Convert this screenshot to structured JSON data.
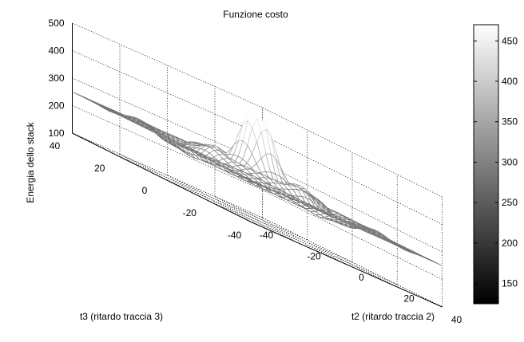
{
  "chart_data": {
    "type": "surface",
    "title": "Funzione costo",
    "xlabel": "t2 (ritardo traccia 2)",
    "ylabel": "t3 (ritardo traccia 3)",
    "zlabel": "Energia dello stack",
    "xlim": [
      -40,
      40
    ],
    "ylim": [
      -40,
      40
    ],
    "zlim": [
      100,
      500
    ],
    "xticks": [
      "-40",
      "-20",
      "0",
      "20",
      "40"
    ],
    "yticks": [
      "-40",
      "-20",
      "0",
      "20",
      "40"
    ],
    "zticks": [
      "100",
      "200",
      "300",
      "400",
      "500"
    ],
    "grid": true,
    "colormap": "gray",
    "colorbar": {
      "range": [
        125,
        470
      ],
      "ticks": [
        "150",
        "200",
        "250",
        "300",
        "350",
        "400",
        "450"
      ]
    },
    "surface": {
      "baseline": 250,
      "peak": 470,
      "peak_at": [
        0,
        0
      ],
      "min": 125,
      "edge_value": 250
    }
  }
}
